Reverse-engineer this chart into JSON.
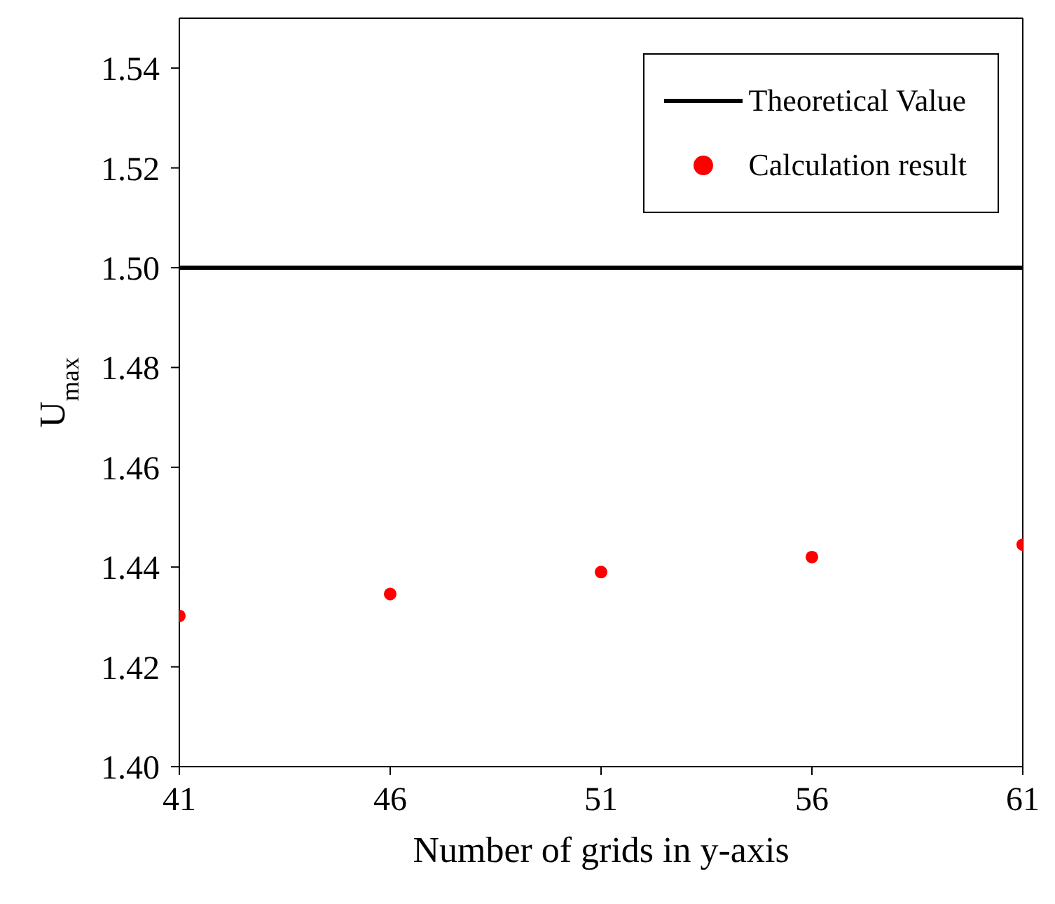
{
  "chart_data": {
    "type": "scatter",
    "xlabel": "Number of grids in y-axis",
    "ylabel": "U$_{max}$",
    "x": [
      41,
      46,
      51,
      56,
      61
    ],
    "series": [
      {
        "name": "Theoretical Value",
        "type": "line",
        "color": "#000000",
        "x": [
          41,
          61
        ],
        "values": [
          1.5,
          1.5
        ],
        "marker": "none",
        "line_style": "solid"
      },
      {
        "name": "Calculation result",
        "color": "#ff0000",
        "values": [
          1.4302,
          1.4346,
          1.439,
          1.442,
          1.4445
        ],
        "marker": "circle"
      }
    ],
    "xlim": [
      41,
      61
    ],
    "xticks": [
      41,
      46,
      51,
      56,
      61
    ],
    "ylim": [
      1.4,
      1.55
    ],
    "yticks": [
      {
        "value": 1.4,
        "label": "1.40"
      },
      1.42,
      1.44,
      1.46,
      1.48,
      {
        "value": 1.5,
        "label": "1.50"
      },
      1.52,
      1.54
    ],
    "grid": false,
    "legend": "top right"
  }
}
